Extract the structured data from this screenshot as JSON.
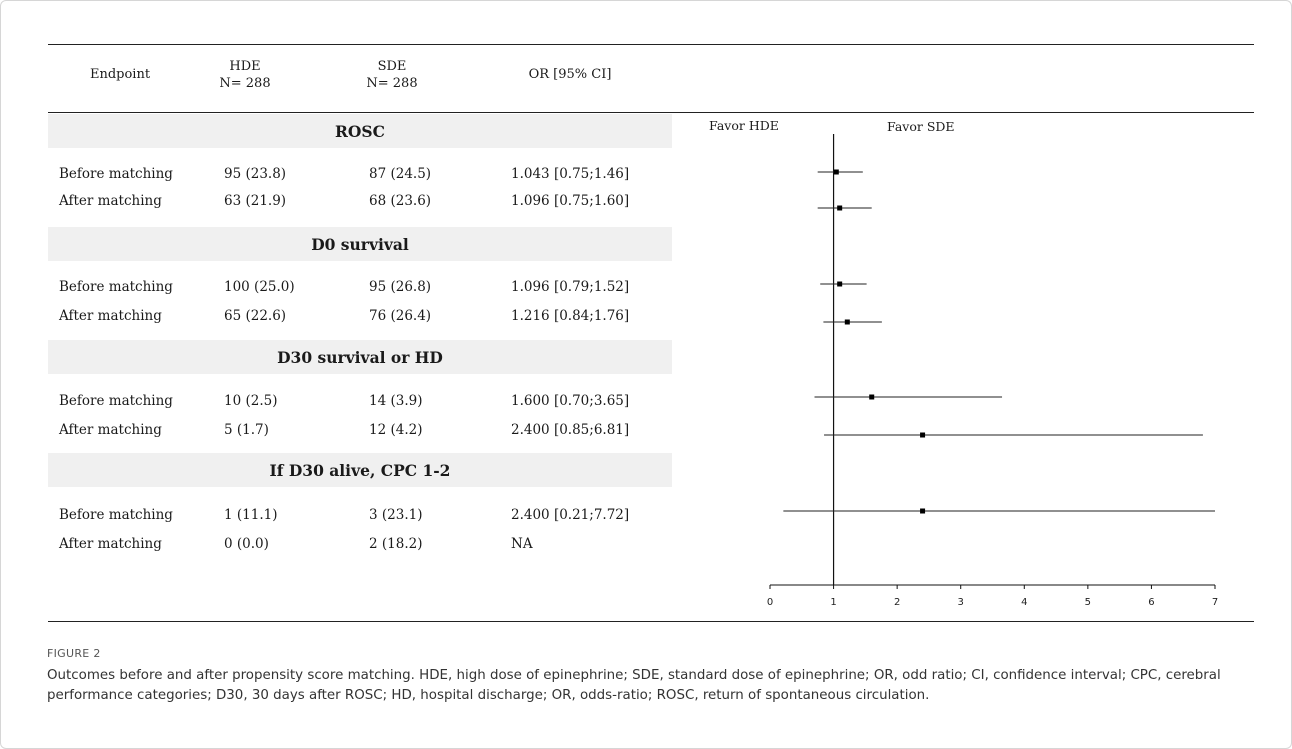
{
  "table": {
    "headers": {
      "endpoint": "Endpoint",
      "hde": "HDE",
      "hde_n": "N= 288",
      "sde": "SDE",
      "sde_n": "N= 288",
      "or": "OR [95% CI]"
    },
    "sections": [
      {
        "title": "ROSC",
        "rows": [
          {
            "label": "Before matching",
            "hde": "95 (23.8)",
            "sde": "87 (24.5)",
            "or": "1.043 [0.75;1.46]"
          },
          {
            "label": "After matching",
            "hde": "63 (21.9)",
            "sde": "68 (23.6)",
            "or": "1.096 [0.75;1.60]"
          }
        ]
      },
      {
        "title": "D0 survival",
        "rows": [
          {
            "label": "Before matching",
            "hde": "100 (25.0)",
            "sde": "95 (26.8)",
            "or": "1.096 [0.79;1.52]"
          },
          {
            "label": "After matching",
            "hde": "65 (22.6)",
            "sde": "76 (26.4)",
            "or": "1.216 [0.84;1.76]"
          }
        ]
      },
      {
        "title": "D30 survival or HD",
        "rows": [
          {
            "label": "Before matching",
            "hde": "10 (2.5)",
            "sde": "14 (3.9)",
            "or": "1.600 [0.70;3.65]"
          },
          {
            "label": "After matching",
            "hde": "5 (1.7)",
            "sde": "12 (4.2)",
            "or": "2.400 [0.85;6.81]"
          }
        ]
      },
      {
        "title": "If D30 alive, CPC 1-2",
        "rows": [
          {
            "label": "Before matching",
            "hde": "1 (11.1)",
            "sde": "3 (23.1)",
            "or": "2.400 [0.21;7.72]"
          },
          {
            "label": "After matching",
            "hde": "0 (0.0)",
            "sde": "2 (18.2)",
            "or": "NA"
          }
        ]
      }
    ]
  },
  "chart_data": {
    "type": "scatter",
    "title": "",
    "xlabel": "",
    "ylabel": "",
    "xlim": [
      0,
      7
    ],
    "xticks": [
      "0",
      "1",
      "2",
      "3",
      "4",
      "5",
      "6",
      "7"
    ],
    "reference_line": 1,
    "side_labels": {
      "left": "Favor HDE",
      "right": "Favor SDE"
    },
    "points": [
      {
        "row": "ROSC — Before matching",
        "or": 1.043,
        "lower": 0.75,
        "upper": 1.46
      },
      {
        "row": "ROSC — After matching",
        "or": 1.096,
        "lower": 0.75,
        "upper": 1.6
      },
      {
        "row": "D0 survival — Before matching",
        "or": 1.096,
        "lower": 0.79,
        "upper": 1.52
      },
      {
        "row": "D0 survival — After matching",
        "or": 1.216,
        "lower": 0.84,
        "upper": 1.76
      },
      {
        "row": "D30 survival or HD — Before matching",
        "or": 1.6,
        "lower": 0.7,
        "upper": 3.65
      },
      {
        "row": "D30 survival or HD — After matching",
        "or": 2.4,
        "lower": 0.85,
        "upper": 6.81
      },
      {
        "row": "If D30 alive, CPC 1-2 — Before matching",
        "or": 2.4,
        "lower": 0.21,
        "upper": 7.72
      }
    ],
    "grid": false
  },
  "caption": {
    "label": "FIGURE 2",
    "text": "Outcomes before and after propensity score matching. HDE, high dose of epinephrine; SDE, standard dose of epinephrine; OR, odd ratio; CI, confidence interval; CPC, cerebral performance categories; D30, 30 days after ROSC; HD, hospital discharge; OR, odds-ratio; ROSC, return of spontaneous circulation."
  }
}
